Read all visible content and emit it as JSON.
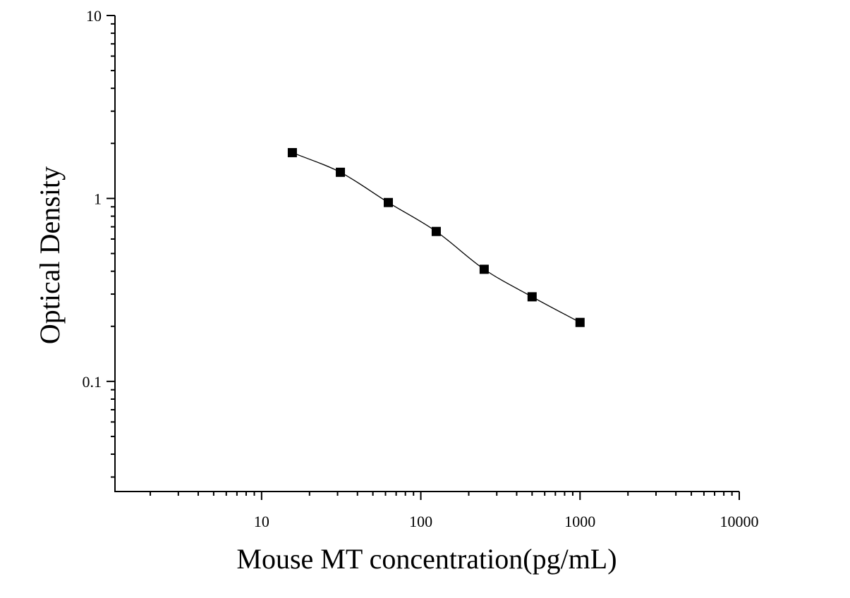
{
  "chart_data": {
    "type": "scatter",
    "title": "",
    "xlabel": "Mouse MT concentration(pg/mL)",
    "ylabel": "Optical Density",
    "x_scale": "log",
    "y_scale": "log",
    "xlim": [
      1.2,
      10000
    ],
    "ylim": [
      0.025,
      10
    ],
    "x_ticks": [
      {
        "value": 10,
        "label": "10"
      },
      {
        "value": 100,
        "label": "100"
      },
      {
        "value": 1000,
        "label": "1000"
      },
      {
        "value": 10000,
        "label": "10000"
      }
    ],
    "y_ticks": [
      {
        "value": 0.1,
        "label": "0.1"
      },
      {
        "value": 1,
        "label": "1"
      },
      {
        "value": 10,
        "label": "10"
      }
    ],
    "grid": false,
    "legend": "none",
    "series": [
      {
        "marker": "square",
        "color": "#000000",
        "fit_curve": true,
        "points": [
          {
            "x": 15.6,
            "y": 1.78
          },
          {
            "x": 31.25,
            "y": 1.39
          },
          {
            "x": 62.5,
            "y": 0.95
          },
          {
            "x": 125,
            "y": 0.66
          },
          {
            "x": 250,
            "y": 0.41
          },
          {
            "x": 500,
            "y": 0.29
          },
          {
            "x": 1000,
            "y": 0.21
          }
        ]
      }
    ]
  }
}
